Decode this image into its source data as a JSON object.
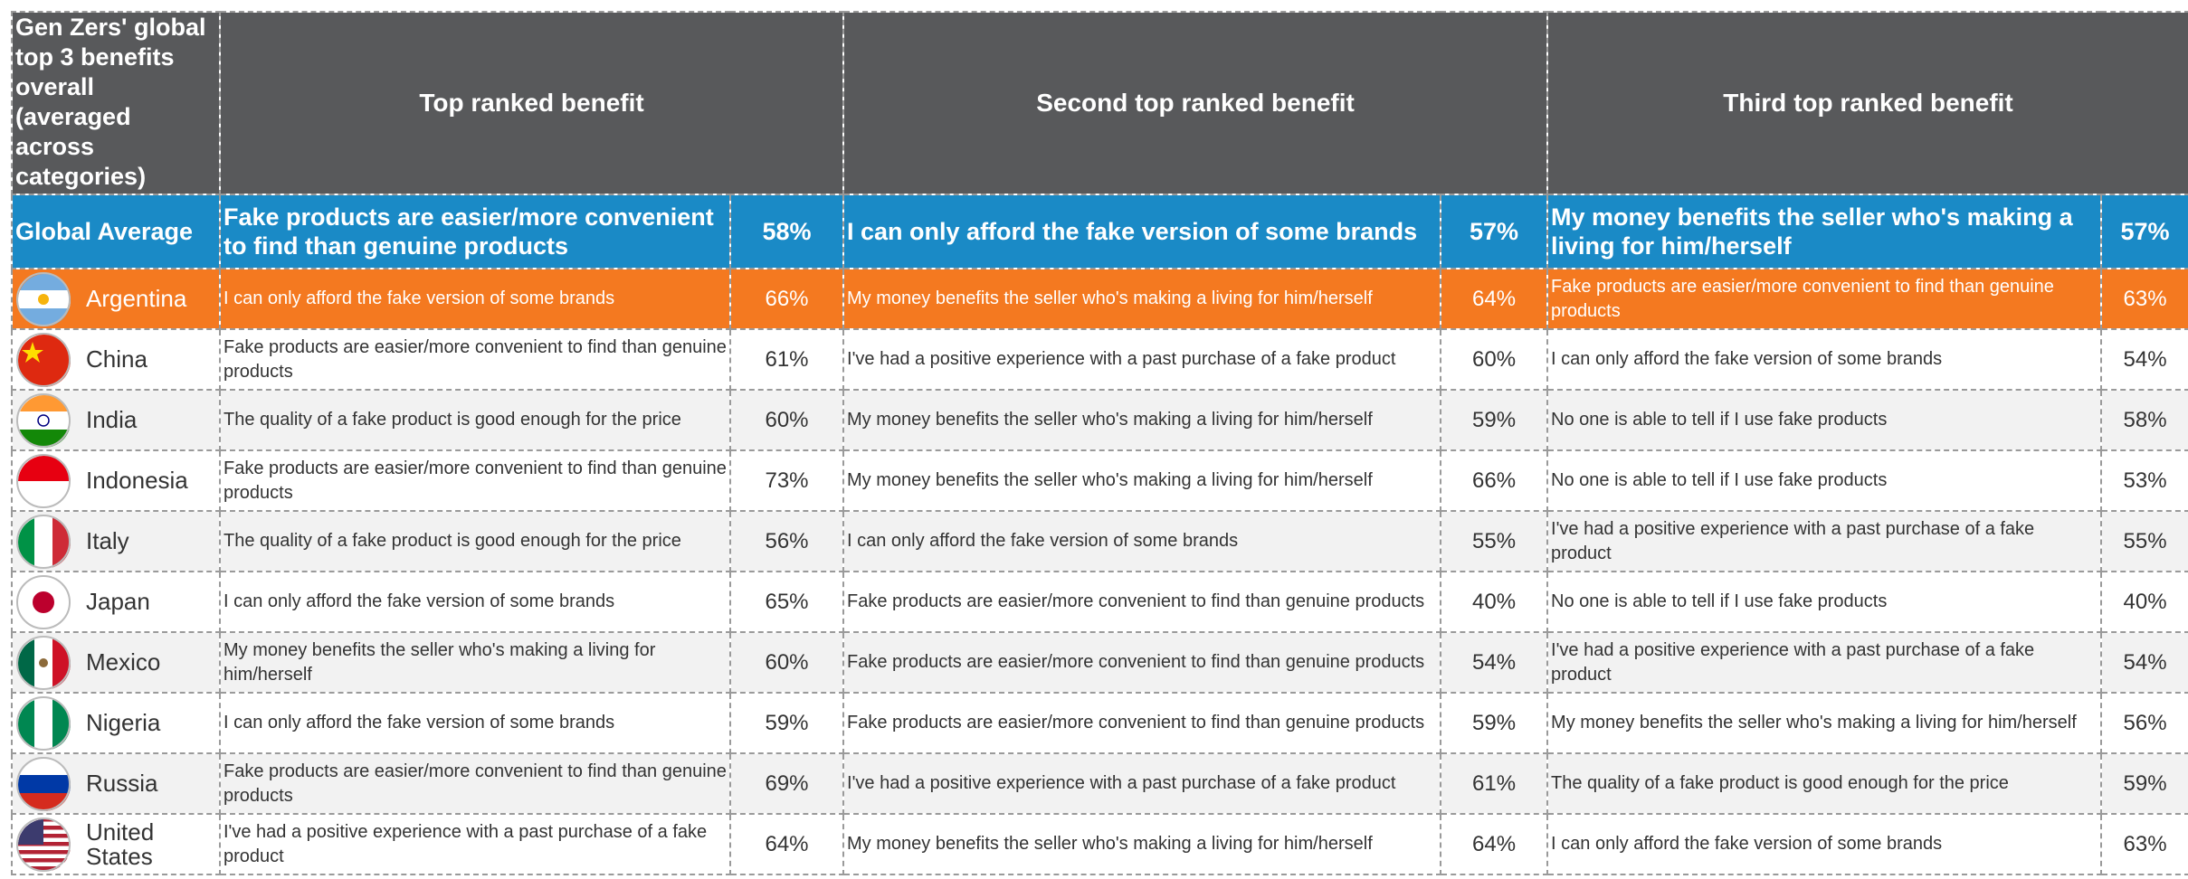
{
  "header": {
    "corner": "Gen Zers' global top 3 benefits overall (averaged across categories)",
    "columns": [
      "Top ranked benefit",
      "Second top ranked benefit",
      "Third top ranked benefit"
    ]
  },
  "global": {
    "label": "Global Average",
    "benefits": [
      {
        "text": "Fake products are easier/more convenient to find than genuine products",
        "pct": "58%"
      },
      {
        "text": "I can only afford the fake version of some brands",
        "pct": "57%"
      },
      {
        "text": "My money benefits the seller who's making a living for him/herself",
        "pct": "57%"
      }
    ]
  },
  "rows": [
    {
      "country": "Argentina",
      "benefits": [
        {
          "text": "I can only afford the fake version of some brands",
          "pct": "66%"
        },
        {
          "text": "My money benefits the seller who's making a living for him/herself",
          "pct": "64%"
        },
        {
          "text": "Fake products are easier/more convenient to find than genuine products",
          "pct": "63%"
        }
      ]
    },
    {
      "country": "China",
      "benefits": [
        {
          "text": "Fake products are easier/more convenient to find than genuine products",
          "pct": "61%"
        },
        {
          "text": "I've had a positive experience with a past purchase of a fake product",
          "pct": "60%"
        },
        {
          "text": "I can only afford the fake version of some brands",
          "pct": "54%"
        }
      ]
    },
    {
      "country": "India",
      "benefits": [
        {
          "text": "The quality of a fake product is good enough for the price",
          "pct": "60%"
        },
        {
          "text": "My money benefits the seller who's making a living for him/herself",
          "pct": "59%"
        },
        {
          "text": "No one is able to tell if I use fake products",
          "pct": "58%"
        }
      ]
    },
    {
      "country": "Indonesia",
      "benefits": [
        {
          "text": "Fake products are easier/more convenient to find than genuine products",
          "pct": "73%"
        },
        {
          "text": "My money benefits the seller who's making a living for him/herself",
          "pct": "66%"
        },
        {
          "text": "No one is able to tell if I use fake products",
          "pct": "53%"
        }
      ]
    },
    {
      "country": "Italy",
      "benefits": [
        {
          "text": "The quality of a fake product is good enough for the price",
          "pct": "56%"
        },
        {
          "text": "I can only afford the fake version of some brands",
          "pct": "55%"
        },
        {
          "text": "I've had a positive experience with a past purchase of a fake product",
          "pct": "55%"
        }
      ]
    },
    {
      "country": "Japan",
      "benefits": [
        {
          "text": "I can only afford the fake version of some brands",
          "pct": "65%"
        },
        {
          "text": "Fake products are easier/more convenient to find than genuine products",
          "pct": "40%"
        },
        {
          "text": "No one is able to tell if I use fake products",
          "pct": "40%"
        }
      ]
    },
    {
      "country": "Mexico",
      "benefits": [
        {
          "text": "My money benefits the seller who's making a living for him/herself",
          "pct": "60%"
        },
        {
          "text": "Fake products are easier/more convenient to find than genuine products",
          "pct": "54%"
        },
        {
          "text": "I've had a positive experience with a past purchase of a fake product",
          "pct": "54%"
        }
      ]
    },
    {
      "country": "Nigeria",
      "benefits": [
        {
          "text": "I can only afford the fake version of some brands",
          "pct": "59%"
        },
        {
          "text": "Fake products are easier/more convenient to find than genuine products",
          "pct": "59%"
        },
        {
          "text": "My money benefits the seller who's making a living for him/herself",
          "pct": "56%"
        }
      ]
    },
    {
      "country": "Russia",
      "benefits": [
        {
          "text": "Fake products are easier/more convenient to find than genuine products",
          "pct": "69%"
        },
        {
          "text": "I've had a positive experience with a past purchase of a fake product",
          "pct": "61%"
        },
        {
          "text": "The quality of a fake product is good enough for the price",
          "pct": "59%"
        }
      ]
    },
    {
      "country": "United States",
      "benefits": [
        {
          "text": "I've had a positive experience with a past purchase of a fake product",
          "pct": "64%"
        },
        {
          "text": "My money benefits the seller who's making a living for him/herself",
          "pct": "64%"
        },
        {
          "text": "I can only afford the fake version of some brands",
          "pct": "63%"
        }
      ]
    }
  ]
}
